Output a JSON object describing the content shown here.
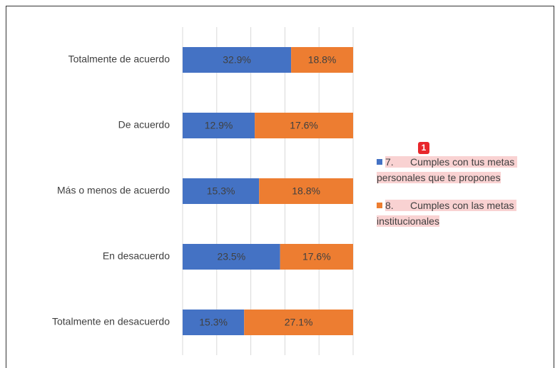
{
  "chart_data": {
    "type": "bar",
    "orientation": "horizontal",
    "stack": "percent",
    "categories": [
      "Totalmente de acuerdo",
      "De acuerdo",
      "Más o menos de acuerdo",
      "En desacuerdo",
      "Totalmente en desacuerdo"
    ],
    "series": [
      {
        "name": "7.      Cumples con tus metas personales que te propones",
        "color": "#4472c4",
        "values": [
          32.9,
          12.9,
          15.3,
          23.5,
          15.3
        ],
        "value_labels": [
          "32.9%",
          "12.9%",
          "15.3%",
          "23.5%",
          "15.3%"
        ]
      },
      {
        "name": "8.      Cumples con las metas institucionales",
        "color": "#ed7d31",
        "values": [
          18.8,
          17.6,
          18.8,
          17.6,
          27.1
        ],
        "value_labels": [
          "18.8%",
          "17.6%",
          "18.8%",
          "17.6%",
          "27.1%"
        ]
      }
    ],
    "xlim": [
      0,
      100
    ],
    "xticks": [
      0,
      20,
      40,
      60,
      80,
      100
    ],
    "tick_labels": false,
    "grid": true,
    "legend": "right",
    "comment_marker": "1"
  }
}
